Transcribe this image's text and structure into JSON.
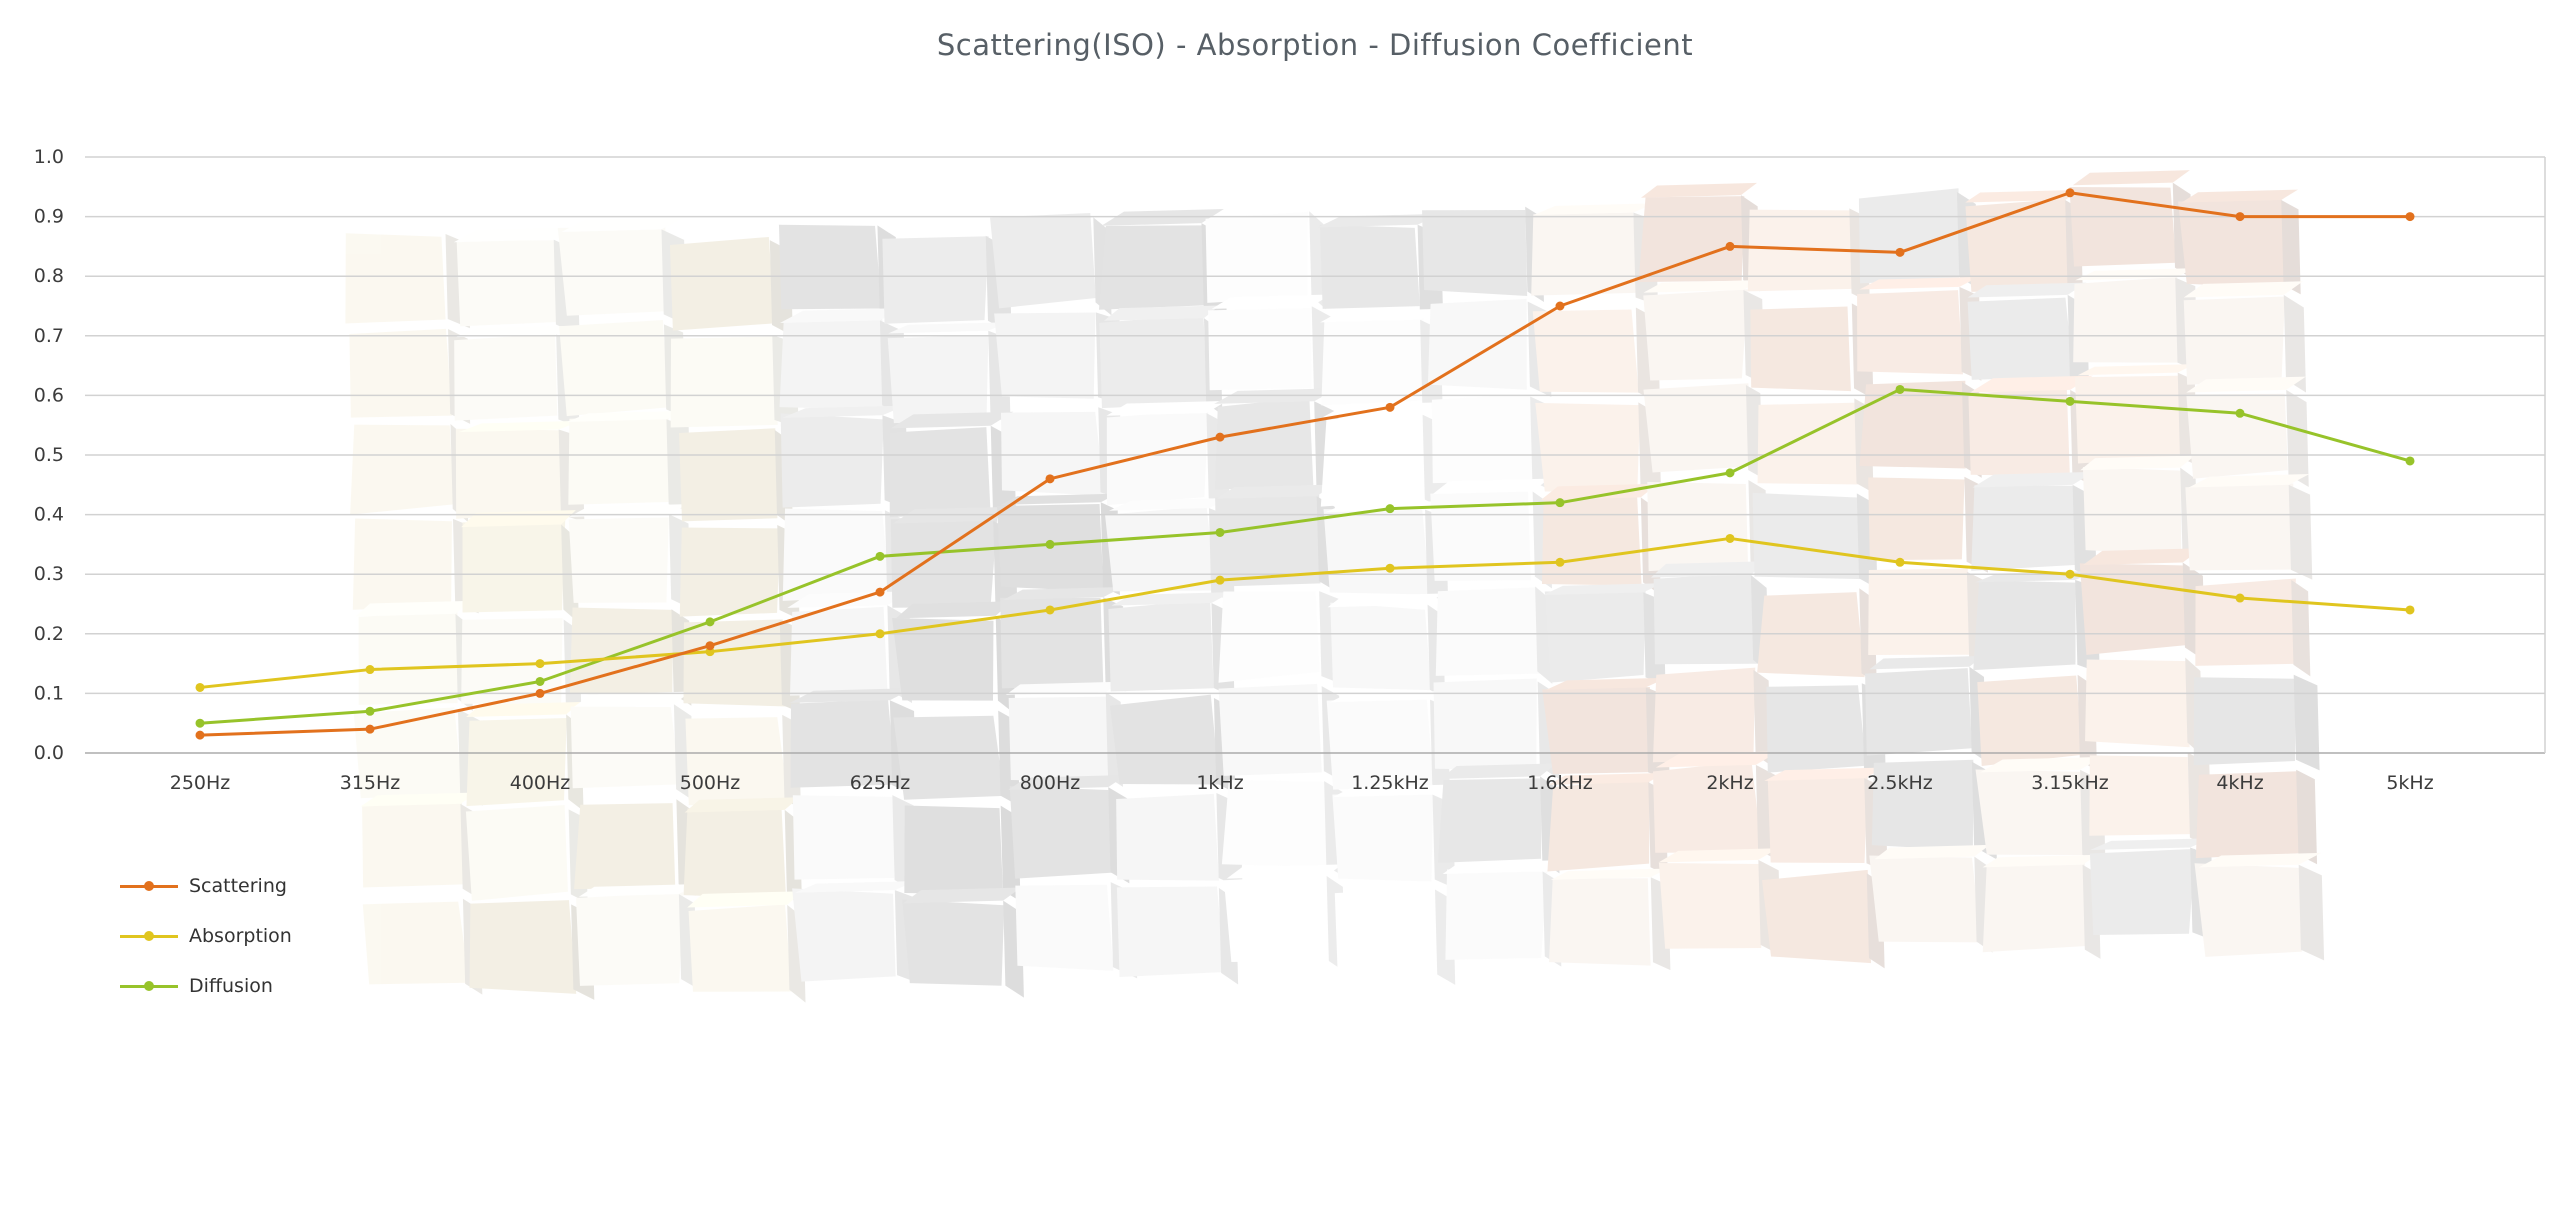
{
  "chart_data": {
    "type": "line",
    "title": "Scattering(ISO) - Absorption - Diffusion Coefficient",
    "xlabel": "",
    "ylabel": "",
    "categories": [
      "250Hz",
      "315Hz",
      "400Hz",
      "500Hz",
      "625Hz",
      "800Hz",
      "1kHz",
      "1.25kHz",
      "1.6kHz",
      "2kHz",
      "2.5kHz",
      "3.15kHz",
      "4kHz",
      "5kHz"
    ],
    "series": [
      {
        "name": "Scattering",
        "color": "#E2711D",
        "values": [
          0.03,
          0.04,
          0.1,
          0.18,
          0.27,
          0.46,
          0.53,
          0.58,
          0.75,
          0.85,
          0.84,
          0.94,
          0.9,
          0.9
        ]
      },
      {
        "name": "Absorption",
        "color": "#E0C51F",
        "values": [
          0.11,
          0.14,
          0.15,
          0.17,
          0.2,
          0.24,
          0.29,
          0.31,
          0.32,
          0.36,
          0.32,
          0.3,
          0.26,
          0.24
        ]
      },
      {
        "name": "Diffusion",
        "color": "#97C32A",
        "values": [
          0.05,
          0.07,
          0.12,
          0.22,
          0.33,
          0.35,
          0.37,
          0.41,
          0.42,
          0.47,
          0.61,
          0.59,
          0.57,
          0.49
        ]
      }
    ],
    "ylim": [
      0,
      1
    ],
    "yticks": [
      "0.0",
      "0.1",
      "0.2",
      "0.3",
      "0.4",
      "0.5",
      "0.6",
      "0.7",
      "0.8",
      "0.9",
      "1.0"
    ],
    "grid": true,
    "legend_position": "bottom-left",
    "colors": {
      "gridline": "#d2d2d2",
      "axis_line": "#ababab",
      "tick_text": "#3c3c3c",
      "title_text": "#575f66"
    }
  }
}
